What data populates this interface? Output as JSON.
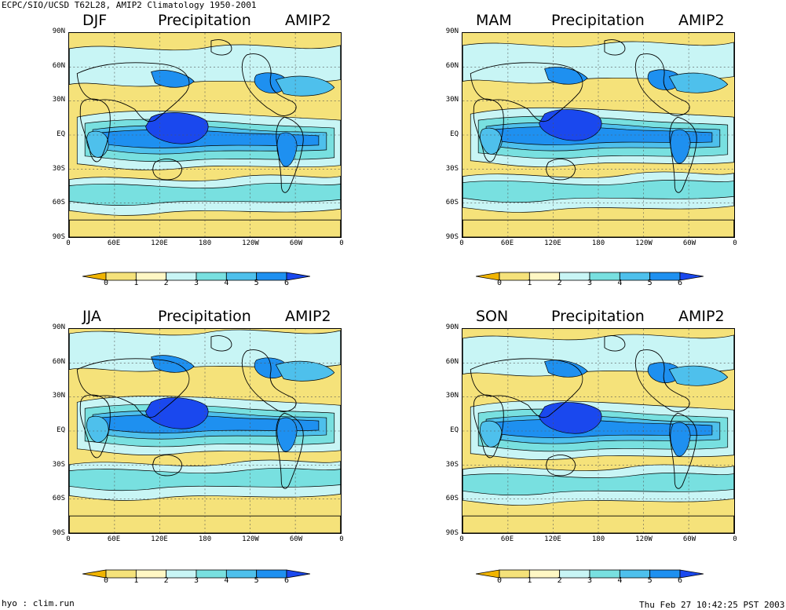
{
  "header": {
    "top_left": "ECPC/SIO/UCSD T62L28, AMIP2 Climatology 1950-2001",
    "bottom_left": "hyo : clim.run",
    "bottom_right": "Thu Feb 27 10:42:25 PST 2003"
  },
  "panel_common": {
    "variable": "Precipitation",
    "model": "AMIP2",
    "lat_labels": [
      "90N",
      "60N",
      "30N",
      "EQ",
      "30S",
      "60S",
      "90S"
    ],
    "lon_labels": [
      "0",
      "60E",
      "120E",
      "180",
      "120W",
      "60W",
      "0"
    ]
  },
  "panels": [
    {
      "season": "DJF"
    },
    {
      "season": "MAM"
    },
    {
      "season": "JJA"
    },
    {
      "season": "SON"
    }
  ],
  "colorbar": {
    "levels": [
      "0",
      "1",
      "2",
      "3",
      "4",
      "5",
      "6"
    ],
    "colors": [
      "#f0b400",
      "#f5e27a",
      "#fff7c4",
      "#c8f5f5",
      "#78e0e0",
      "#4ec0ec",
      "#1e90f0",
      "#1a48ee"
    ]
  },
  "colors": {
    "dry": "#f5e27a",
    "light": "#c8f5f5",
    "medium": "#78e0e0",
    "heavy": "#4ec0ec",
    "veryheavy": "#1e90f0",
    "extreme": "#1a48ee"
  }
}
